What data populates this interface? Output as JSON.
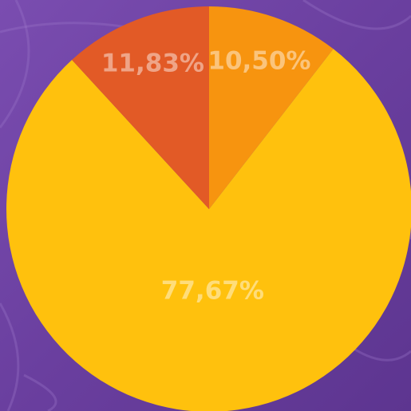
{
  "chart_data": {
    "type": "pie",
    "categories": [
      null,
      null,
      null
    ],
    "values": [
      10.5,
      77.67,
      11.83
    ],
    "value_labels": [
      "10,50%",
      "77,67%",
      "11,83%"
    ],
    "colors": [
      "#f7940f",
      "#ffc10d",
      "#e25a26"
    ]
  }
}
